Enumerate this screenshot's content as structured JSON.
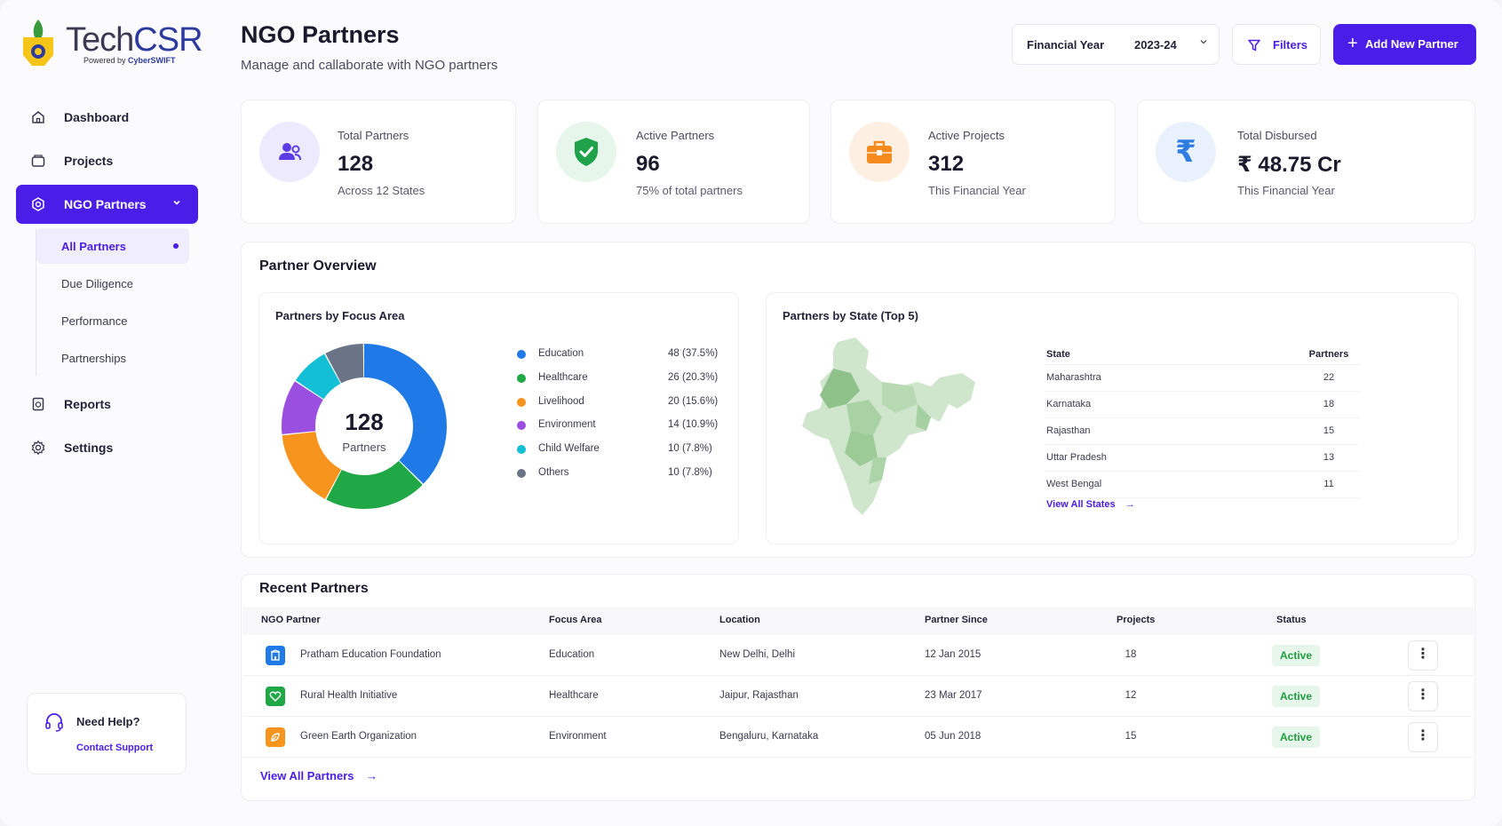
{
  "brand": {
    "name_part1": "Tech",
    "name_part2": "CSR",
    "powered_by": "Powered by",
    "powered_brand": "CyberSWIFT"
  },
  "sidebar": {
    "items": [
      {
        "label": "Dashboard",
        "icon": "home-icon"
      },
      {
        "label": "Projects",
        "icon": "folder-icon"
      },
      {
        "label": "NGO Partners",
        "icon": "ngo-icon",
        "active": true
      },
      {
        "label": "Reports",
        "icon": "report-icon"
      },
      {
        "label": "Settings",
        "icon": "gear-icon"
      }
    ],
    "sub_items": [
      {
        "label": "All Partners",
        "active": true
      },
      {
        "label": "Due Diligence"
      },
      {
        "label": "Performance"
      },
      {
        "label": "Partnerships"
      }
    ],
    "help_title": "Need Help?",
    "help_link": "Contact Support"
  },
  "header": {
    "title": "NGO Partners",
    "subtitle": "Manage and callaborate with NGO partners",
    "fy_label": "Financial Year",
    "fy_value": "2023-24",
    "filters_label": "Filters",
    "add_label": "Add New Partner"
  },
  "stats": [
    {
      "label": "Total Partners",
      "value": "128",
      "sub": "Across 12 States",
      "icon": "users-icon",
      "color": "#5b3de6",
      "bg": "#eeeafd"
    },
    {
      "label": "Active Partners",
      "value": "96",
      "sub": "75% of total partners",
      "icon": "shield-check-icon",
      "color": "#1fa24a",
      "bg": "#e6f6ea"
    },
    {
      "label": "Active Projects",
      "value": "312",
      "sub": "This Financial Year",
      "icon": "briefcase-icon",
      "color": "#f58a1f",
      "bg": "#fdf0e3"
    },
    {
      "label": "Total Disbursed",
      "value": "₹ 48.75 Cr",
      "sub": "This Financial Year",
      "icon": "rupee-icon",
      "color": "#2f7de1",
      "bg": "#e8f1fc"
    }
  ],
  "overview": {
    "title": "Partner Overview",
    "focus_title": "Partners by Focus Area",
    "donut_total": "128",
    "donut_label": "Partners",
    "state_title": "Partners by State (Top 5)",
    "state_col1": "State",
    "state_col2": "Partners",
    "states": [
      {
        "name": "Maharashtra",
        "count": "22"
      },
      {
        "name": "Karnataka",
        "count": "18"
      },
      {
        "name": "Rajasthan",
        "count": "15"
      },
      {
        "name": "Uttar Pradesh",
        "count": "13"
      },
      {
        "name": "West Bengal",
        "count": "11"
      }
    ],
    "view_states": "View All States"
  },
  "chart_data": {
    "type": "pie",
    "categories": [
      "Education",
      "Healthcare",
      "Livelihood",
      "Environment",
      "Child Welfare",
      "Others"
    ],
    "values": [
      48,
      26,
      20,
      14,
      10,
      10
    ],
    "labels": [
      "48 (37.5%)",
      "26 (20.3%)",
      "20 (15.6%)",
      "14 (10.9%)",
      "10 (7.8%)",
      "10 (7.8%)"
    ],
    "colors": [
      "#1f7ae8",
      "#1fa845",
      "#f7941d",
      "#9b4fe0",
      "#13bfd4",
      "#6b7486"
    ],
    "total": 128
  },
  "recent": {
    "title": "Recent Partners",
    "columns": [
      "NGO Partner",
      "Focus Area",
      "Location",
      "Partner Since",
      "Projects",
      "Status"
    ],
    "rows": [
      {
        "name": "Pratham Education Foundation",
        "focus": "Education",
        "location": "New Delhi, Delhi",
        "since": "12 Jan 2015",
        "projects": "18",
        "status": "Active",
        "icon": "building-icon",
        "color": "#1f7ae8"
      },
      {
        "name": "Rural Health Initiative",
        "focus": "Healthcare",
        "location": "Jaipur, Rajasthan",
        "since": "23 Mar 2017",
        "projects": "12",
        "status": "Active",
        "icon": "heart-icon",
        "color": "#1fa845"
      },
      {
        "name": "Green Earth Organization",
        "focus": "Environment",
        "location": "Bengaluru, Karnataka",
        "since": "05 Jun 2018",
        "projects": "15",
        "status": "Active",
        "icon": "leaf-icon",
        "color": "#f7941d"
      }
    ],
    "view_all": "View All Partners"
  }
}
